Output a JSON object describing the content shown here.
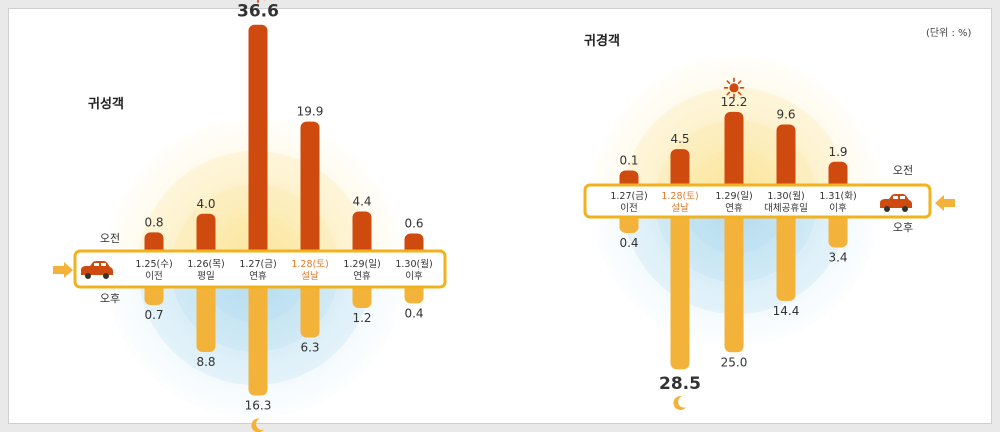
{
  "unit_note": "(단위 : %)",
  "colors": {
    "am_bar": "#cf4a0f",
    "pm_bar": "#f3b33a",
    "band_border": "#f2b21c",
    "highlight_text": "#e07a2a",
    "text": "#333333"
  },
  "icons": {
    "sun": "sun-icon",
    "moon": "moon-icon",
    "car": "car-icon",
    "arrow": "arrow-icon"
  },
  "chart_data": [
    {
      "type": "bar",
      "title": "귀성객",
      "am_label": "오전",
      "pm_label": "오후",
      "categories": [
        {
          "date": "1.25(수)",
          "day": "이전",
          "highlight": false
        },
        {
          "date": "1.26(목)",
          "day": "평일",
          "highlight": false
        },
        {
          "date": "1.27(금)",
          "day": "연휴",
          "highlight": false
        },
        {
          "date": "1.28(토)",
          "day": "설날",
          "highlight": true
        },
        {
          "date": "1.29(일)",
          "day": "연휴",
          "highlight": false
        },
        {
          "date": "1.30(월)",
          "day": "이후",
          "highlight": false
        }
      ],
      "series": [
        {
          "name": "오전",
          "values": [
            0.8,
            4.0,
            36.6,
            19.9,
            4.4,
            0.6
          ]
        },
        {
          "name": "오후",
          "values": [
            0.7,
            8.8,
            16.3,
            6.3,
            1.2,
            0.4
          ]
        }
      ],
      "peak_am_index": 2,
      "peak_pm_index": 2
    },
    {
      "type": "bar",
      "title": "귀경객",
      "am_label": "오전",
      "pm_label": "오후",
      "categories": [
        {
          "date": "1.27(금)",
          "day": "이전",
          "highlight": false
        },
        {
          "date": "1.28(토)",
          "day": "설날",
          "highlight": true
        },
        {
          "date": "1.29(일)",
          "day": "연휴",
          "highlight": false
        },
        {
          "date": "1.30(월)",
          "day": "대체공휴일",
          "highlight": false
        },
        {
          "date": "1.31(화)",
          "day": "이후",
          "highlight": false
        }
      ],
      "series": [
        {
          "name": "오전",
          "values": [
            0.1,
            4.5,
            12.2,
            9.6,
            1.9
          ]
        },
        {
          "name": "오후",
          "values": [
            0.4,
            28.5,
            25.0,
            14.4,
            3.4
          ]
        }
      ],
      "peak_am_index": 2,
      "peak_pm_index": 1
    }
  ]
}
